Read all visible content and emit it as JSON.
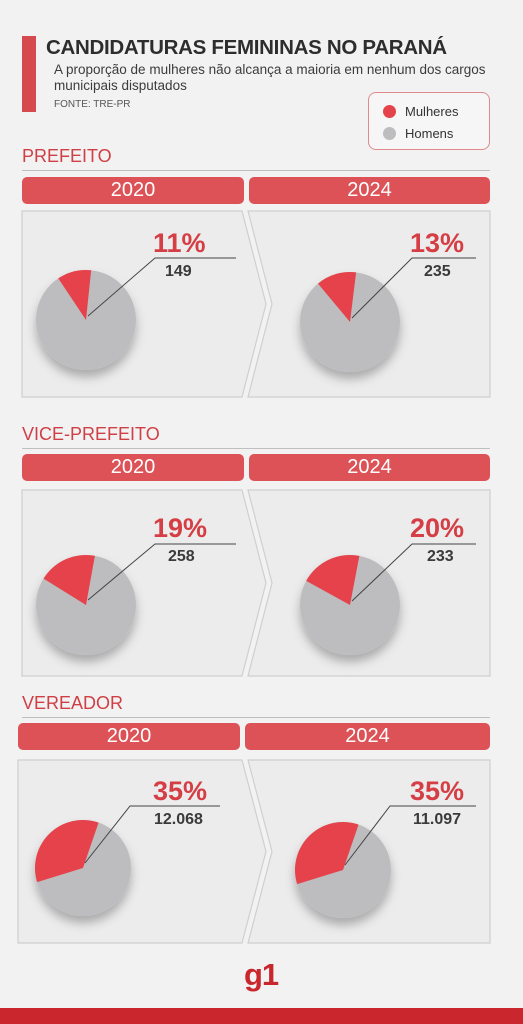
{
  "header": {
    "title": "CANDIDATURAS FEMININAS NO PARANÁ",
    "subtitle": "A proporção de mulheres não alcança a maioria em nenhum dos cargos municipais disputados",
    "source": "FONTE: TRE-PR"
  },
  "legend": [
    {
      "label": "Mulheres",
      "color": "#e5434b"
    },
    {
      "label": "Homens",
      "color": "#bdbdbf"
    }
  ],
  "colors": {
    "accent": "#dd5256",
    "women": "#e5434b",
    "men": "#bdbdbf",
    "brand": "#c9272d"
  },
  "chart_data": [
    {
      "type": "pie",
      "section": "PREFEITO",
      "year": "2020",
      "categories": [
        "Mulheres",
        "Homens"
      ],
      "values": [
        11,
        89
      ],
      "pct_label": "11%",
      "count_label": "149"
    },
    {
      "type": "pie",
      "section": "PREFEITO",
      "year": "2024",
      "categories": [
        "Mulheres",
        "Homens"
      ],
      "values": [
        13,
        87
      ],
      "pct_label": "13%",
      "count_label": "235"
    },
    {
      "type": "pie",
      "section": "VICE-PREFEITO",
      "year": "2020",
      "categories": [
        "Mulheres",
        "Homens"
      ],
      "values": [
        19,
        81
      ],
      "pct_label": "19%",
      "count_label": "258"
    },
    {
      "type": "pie",
      "section": "VICE-PREFEITO",
      "year": "2024",
      "categories": [
        "Mulheres",
        "Homens"
      ],
      "values": [
        20,
        80
      ],
      "pct_label": "20%",
      "count_label": "233"
    },
    {
      "type": "pie",
      "section": "VEREADOR",
      "year": "2020",
      "categories": [
        "Mulheres",
        "Homens"
      ],
      "values": [
        35,
        65
      ],
      "pct_label": "35%",
      "count_label": "12.068"
    },
    {
      "type": "pie",
      "section": "VEREADOR",
      "year": "2024",
      "categories": [
        "Mulheres",
        "Homens"
      ],
      "values": [
        35,
        65
      ],
      "pct_label": "35%",
      "count_label": "11.097"
    }
  ],
  "sections": [
    "PREFEITO",
    "VICE-PREFEITO",
    "VEREADOR"
  ],
  "years": [
    "2020",
    "2024"
  ],
  "logo": {
    "text": "g1"
  }
}
